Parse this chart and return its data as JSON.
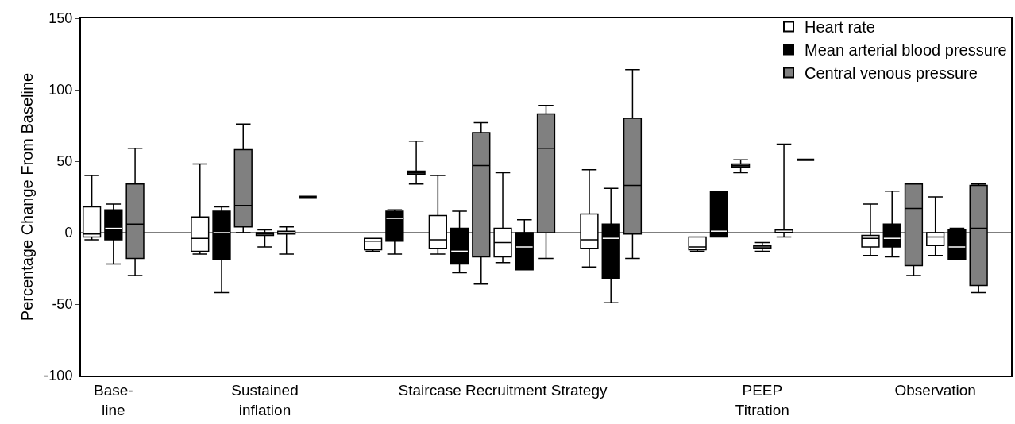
{
  "chart_data": {
    "type": "box",
    "ylabel": "Percentage Change From Baseline",
    "ylim": [
      -100,
      150
    ],
    "yticks": [
      -100,
      -50,
      0,
      50,
      100,
      150
    ],
    "categories": [
      null,
      "Base-\nline",
      null,
      null,
      null,
      null,
      null,
      null,
      "Sustained\ninflation",
      null,
      null,
      null,
      null,
      null,
      null,
      null,
      null,
      null,
      null,
      "Staircase Recruitment Strategy",
      null,
      null,
      null,
      null,
      null,
      null,
      null,
      null,
      null,
      null,
      null,
      "PEEP\nTitration",
      null,
      null,
      null,
      null,
      null,
      null,
      null,
      "Observation",
      null,
      null,
      null
    ],
    "grid": false,
    "legend": "top right",
    "ref_lines": [
      {
        "axis": "y",
        "value": 0,
        "color": "#000000"
      }
    ],
    "series": [
      {
        "name": "Heart rate",
        "color": "#ffffff",
        "boxes": [
          {
            "low": -5,
            "q1": -3,
            "median": -1,
            "q3": 18,
            "high": 40
          },
          null,
          null,
          null,
          null,
          {
            "low": -15,
            "q1": -13,
            "median": -4,
            "q3": 11,
            "high": 48
          },
          null,
          null,
          {
            "low": -10,
            "q1": -2,
            "median": -1,
            "q3": 0,
            "high": 2
          },
          null,
          null,
          null,
          null,
          {
            "low": -13,
            "q1": -12,
            "median": -6,
            "q3": -4,
            "high": -4
          },
          null,
          null,
          {
            "low": -15,
            "q1": -11,
            "median": -5,
            "q3": 12,
            "high": 40
          },
          null,
          null,
          {
            "low": -21,
            "q1": -17,
            "median": -7,
            "q3": 3,
            "high": 42
          },
          null,
          null,
          null,
          {
            "low": -24,
            "q1": -11,
            "median": -5,
            "q3": 13,
            "high": 44
          },
          null,
          null,
          null,
          null,
          {
            "low": -13,
            "q1": -12,
            "median": -10,
            "q3": -3,
            "high": -3
          },
          null,
          null,
          {
            "low": -13,
            "q1": -11,
            "median": -10,
            "q3": -9,
            "high": -7
          },
          null,
          null,
          null,
          null,
          {
            "low": -16,
            "q1": -10,
            "median": -4,
            "q3": -2,
            "high": 20
          },
          null,
          null,
          {
            "low": -16,
            "q1": -9,
            "median": -3,
            "q3": 0,
            "high": 25
          },
          null,
          null,
          null
        ]
      },
      {
        "name": "Mean arterial blood pressure",
        "color": "#000000",
        "boxes": [
          null,
          {
            "low": -22,
            "q1": -5,
            "median": 3,
            "q3": 16,
            "high": 20
          },
          null,
          null,
          null,
          null,
          {
            "low": -42,
            "q1": -19,
            "median": 0,
            "q3": 15,
            "high": 18
          },
          null,
          null,
          {
            "low": -15,
            "q1": -1,
            "median": 0,
            "q3": 1,
            "high": 4
          },
          null,
          null,
          null,
          null,
          {
            "low": -15,
            "q1": -6,
            "median": 10,
            "q3": 15,
            "high": 16
          },
          null,
          null,
          {
            "low": -28,
            "q1": -22,
            "median": -13,
            "q3": 3,
            "high": 15
          },
          null,
          null,
          {
            "low": -26,
            "q1": -26,
            "median": -10,
            "q3": 0,
            "high": 9
          },
          null,
          null,
          null,
          {
            "low": -49,
            "q1": -32,
            "median": -4,
            "q3": 6,
            "high": 31
          },
          null,
          null,
          null,
          null,
          {
            "low": -3,
            "q1": -3,
            "median": 1,
            "q3": 29,
            "high": 29
          },
          null,
          null,
          {
            "low": -3,
            "q1": 0,
            "median": 1,
            "q3": 2,
            "high": 62
          },
          null,
          null,
          null,
          null,
          {
            "low": -17,
            "q1": -10,
            "median": -4,
            "q3": 6,
            "high": 29
          },
          null,
          null,
          {
            "low": -19,
            "q1": -19,
            "median": -10,
            "q3": 2,
            "high": 3
          },
          null,
          null
        ]
      },
      {
        "name": "Central venous pressure",
        "color": "#808080",
        "colors": [
          null,
          null,
          "#808080",
          null,
          null,
          null,
          null,
          "#808080",
          null,
          null,
          "#000000",
          null,
          null,
          null,
          null,
          "#808080",
          null,
          null,
          "#808080",
          null,
          null,
          "#808080",
          null,
          null,
          null,
          "#808080",
          null,
          null,
          null,
          null,
          "#808080",
          null,
          null,
          "#000000",
          null,
          null,
          null,
          null,
          "#808080",
          null,
          null,
          "#808080",
          null
        ],
        "boxes": [
          null,
          null,
          {
            "low": -30,
            "q1": -18,
            "median": 6,
            "q3": 34,
            "high": 59
          },
          null,
          null,
          null,
          null,
          {
            "low": 0,
            "q1": 4,
            "median": 19,
            "q3": 58,
            "high": 76
          },
          null,
          null,
          {
            "low": 25,
            "q1": 25,
            "median": 25,
            "q3": 25,
            "high": 25
          },
          null,
          null,
          null,
          null,
          {
            "low": 34,
            "q1": 41,
            "median": 42,
            "q3": 43,
            "high": 64
          },
          null,
          null,
          {
            "low": -36,
            "q1": -17,
            "median": 47,
            "q3": 70,
            "high": 77
          },
          null,
          null,
          {
            "low": -18,
            "q1": 0,
            "median": 59,
            "q3": 83,
            "high": 89
          },
          null,
          null,
          null,
          {
            "low": -18,
            "q1": -1,
            "median": 33,
            "q3": 80,
            "high": 114
          },
          null,
          null,
          null,
          null,
          {
            "low": 42,
            "q1": 46,
            "median": 47,
            "q3": 48,
            "high": 51
          },
          null,
          null,
          {
            "low": 51,
            "q1": 51,
            "median": 51,
            "q3": 51,
            "high": 51
          },
          null,
          null,
          null,
          null,
          {
            "low": -30,
            "q1": -23,
            "median": 17,
            "q3": 34,
            "high": 34
          },
          null,
          null,
          {
            "low": -42,
            "q1": -37,
            "median": 3,
            "q3": 33,
            "high": 34
          },
          null
        ]
      }
    ]
  }
}
